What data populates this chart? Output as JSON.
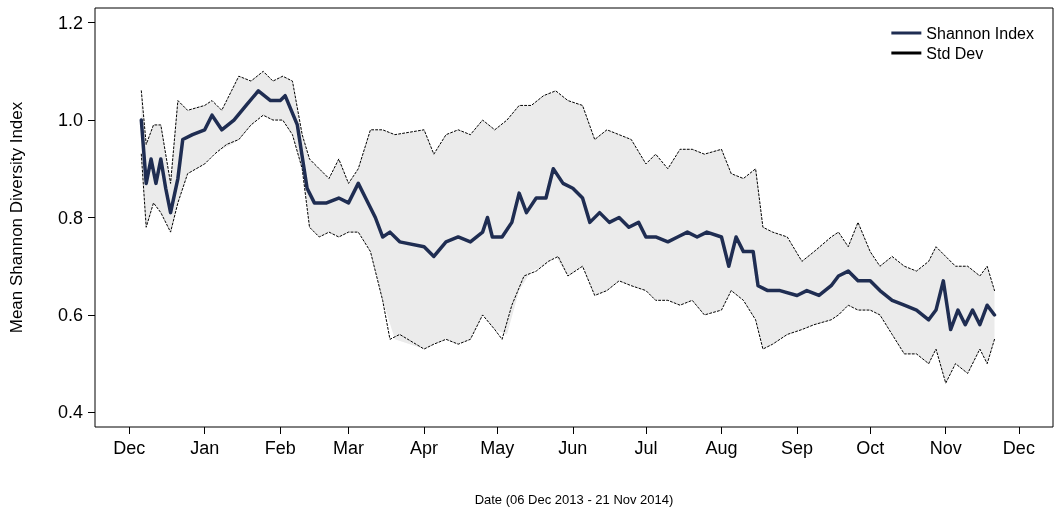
{
  "chart_data": {
    "type": "line",
    "xlabel": "Date (06 Dec 2013 - 21 Nov 2014)",
    "ylabel": "Mean Shannon Diversity Index",
    "xlim": [
      "2013-11-17",
      "2014-12-15"
    ],
    "xticks": [
      {
        "value": "2013-12-01",
        "label": "Dec"
      },
      {
        "value": "2014-01-01",
        "label": "Jan"
      },
      {
        "value": "2014-02-01",
        "label": "Feb"
      },
      {
        "value": "2014-03-01",
        "label": "Mar"
      },
      {
        "value": "2014-04-01",
        "label": "Apr"
      },
      {
        "value": "2014-05-01",
        "label": "May"
      },
      {
        "value": "2014-06-01",
        "label": "Jun"
      },
      {
        "value": "2014-07-01",
        "label": "Jul"
      },
      {
        "value": "2014-08-01",
        "label": "Aug"
      },
      {
        "value": "2014-09-01",
        "label": "Sep"
      },
      {
        "value": "2014-10-01",
        "label": "Oct"
      },
      {
        "value": "2014-11-01",
        "label": "Nov"
      },
      {
        "value": "2014-12-01",
        "label": "Dec"
      }
    ],
    "ylim": [
      0.37,
      1.23
    ],
    "yticks": [
      0.4,
      0.6,
      0.8,
      {
        "value": 1.0,
        "label": "1.0"
      },
      1.2
    ],
    "grid": false,
    "legend": "top right",
    "marker": "none",
    "series": [
      {
        "name": "Shannon Index",
        "color": "#1f2d52",
        "line_style": "solid",
        "x": [
          "2013-12-06",
          "2013-12-08",
          "2013-12-10",
          "2013-12-12",
          "2013-12-14",
          "2013-12-16",
          "2013-12-18",
          "2013-12-21",
          "2013-12-23",
          "2013-12-27",
          "2014-01-01",
          "2014-01-04",
          "2014-01-08",
          "2014-01-13",
          "2014-01-18",
          "2014-01-23",
          "2014-01-28",
          "2014-02-01",
          "2014-02-03",
          "2014-02-08",
          "2014-02-12",
          "2014-02-15",
          "2014-02-20",
          "2014-02-25",
          "2014-03-01",
          "2014-03-05",
          "2014-03-08",
          "2014-03-12",
          "2014-03-15",
          "2014-03-18",
          "2014-03-22",
          "2014-04-01",
          "2014-04-05",
          "2014-04-10",
          "2014-04-15",
          "2014-04-20",
          "2014-04-25",
          "2014-04-27",
          "2014-04-29",
          "2014-05-03",
          "2014-05-07",
          "2014-05-10",
          "2014-05-13",
          "2014-05-17",
          "2014-05-21",
          "2014-05-24",
          "2014-05-28",
          "2014-06-01",
          "2014-06-05",
          "2014-06-08",
          "2014-06-12",
          "2014-06-16",
          "2014-06-20",
          "2014-06-24",
          "2014-06-28",
          "2014-07-01",
          "2014-07-05",
          "2014-07-10",
          "2014-07-14",
          "2014-07-18",
          "2014-07-22",
          "2014-07-26",
          "2014-08-01",
          "2014-08-04",
          "2014-08-07",
          "2014-08-10",
          "2014-08-14",
          "2014-08-16",
          "2014-08-20",
          "2014-08-25",
          "2014-09-01",
          "2014-09-05",
          "2014-09-10",
          "2014-09-15",
          "2014-09-18",
          "2014-09-22",
          "2014-09-26",
          "2014-10-01",
          "2014-10-05",
          "2014-10-10",
          "2014-10-15",
          "2014-10-20",
          "2014-10-25",
          "2014-10-28",
          "2014-10-31",
          "2014-11-03",
          "2014-11-06",
          "2014-11-09",
          "2014-11-12",
          "2014-11-15",
          "2014-11-18",
          "2014-11-21"
        ],
        "values": [
          1.0,
          0.87,
          0.92,
          0.87,
          0.92,
          0.86,
          0.81,
          0.88,
          0.96,
          0.97,
          0.98,
          1.01,
          0.98,
          1.0,
          1.03,
          1.06,
          1.04,
          1.04,
          1.05,
          0.99,
          0.86,
          0.83,
          0.83,
          0.84,
          0.83,
          0.87,
          0.84,
          0.8,
          0.76,
          0.77,
          0.75,
          0.74,
          0.72,
          0.75,
          0.76,
          0.75,
          0.77,
          0.8,
          0.76,
          0.76,
          0.79,
          0.85,
          0.81,
          0.84,
          0.84,
          0.9,
          0.87,
          0.86,
          0.84,
          0.79,
          0.81,
          0.79,
          0.8,
          0.78,
          0.79,
          0.76,
          0.76,
          0.75,
          0.76,
          0.77,
          0.76,
          0.77,
          0.76,
          0.7,
          0.76,
          0.73,
          0.73,
          0.66,
          0.65,
          0.65,
          0.64,
          0.65,
          0.64,
          0.66,
          0.68,
          0.69,
          0.67,
          0.67,
          0.65,
          0.63,
          0.62,
          0.61,
          0.59,
          0.61,
          0.67,
          0.57,
          0.61,
          0.58,
          0.61,
          0.58,
          0.62,
          0.6
        ]
      },
      {
        "name": "Std Dev",
        "color": "#000000",
        "line_style": "dotted",
        "x": [
          "2013-12-06",
          "2013-12-08",
          "2013-12-11",
          "2013-12-14",
          "2013-12-18",
          "2013-12-21",
          "2013-12-25",
          "2014-01-01",
          "2014-01-04",
          "2014-01-08",
          "2014-01-12",
          "2014-01-15",
          "2014-01-20",
          "2014-01-25",
          "2014-01-29",
          "2014-02-02",
          "2014-02-06",
          "2014-02-10",
          "2014-02-13",
          "2014-02-17",
          "2014-02-21",
          "2014-02-25",
          "2014-03-01",
          "2014-03-05",
          "2014-03-10",
          "2014-03-15",
          "2014-03-20",
          "2014-04-01",
          "2014-04-05",
          "2014-04-10",
          "2014-04-15",
          "2014-04-20",
          "2014-04-25",
          "2014-04-30",
          "2014-05-05",
          "2014-05-10",
          "2014-05-15",
          "2014-05-20",
          "2014-05-25",
          "2014-05-30",
          "2014-06-05",
          "2014-06-10",
          "2014-06-15",
          "2014-06-20",
          "2014-06-25",
          "2014-07-01",
          "2014-07-05",
          "2014-07-10",
          "2014-07-15",
          "2014-07-20",
          "2014-07-25",
          "2014-08-01",
          "2014-08-05",
          "2014-08-10",
          "2014-08-15",
          "2014-08-18",
          "2014-08-22",
          "2014-08-28",
          "2014-09-03",
          "2014-09-08",
          "2014-09-15",
          "2014-09-18",
          "2014-09-22",
          "2014-09-26",
          "2014-10-01",
          "2014-10-05",
          "2014-10-10",
          "2014-10-15",
          "2014-10-20",
          "2014-10-25",
          "2014-10-28",
          "2014-11-01",
          "2014-11-05",
          "2014-11-10",
          "2014-11-15",
          "2014-11-18",
          "2014-11-21"
        ],
        "values": [
          1.06,
          0.95,
          0.99,
          0.99,
          0.87,
          1.04,
          1.02,
          1.03,
          1.04,
          1.02,
          1.06,
          1.09,
          1.08,
          1.1,
          1.08,
          1.09,
          1.08,
          0.97,
          0.92,
          0.9,
          0.88,
          0.92,
          0.87,
          0.9,
          0.98,
          0.98,
          0.97,
          0.98,
          0.93,
          0.97,
          0.98,
          0.97,
          1.0,
          0.98,
          1.0,
          1.03,
          1.03,
          1.05,
          1.06,
          1.04,
          1.03,
          0.96,
          0.98,
          0.97,
          0.96,
          0.91,
          0.93,
          0.9,
          0.94,
          0.94,
          0.93,
          0.94,
          0.89,
          0.88,
          0.9,
          0.78,
          0.77,
          0.76,
          0.71,
          0.73,
          0.76,
          0.77,
          0.74,
          0.79,
          0.73,
          0.7,
          0.72,
          0.7,
          0.69,
          0.71,
          0.74,
          0.72,
          0.7,
          0.7,
          0.68,
          0.7,
          0.65
        ],
        "upper": [
          1.06,
          0.95,
          0.99,
          0.99,
          0.87,
          1.04,
          1.02,
          1.03,
          1.04,
          1.02,
          1.06,
          1.09,
          1.08,
          1.1,
          1.08,
          1.09,
          1.08,
          0.97,
          0.92,
          0.9,
          0.88,
          0.92,
          0.87,
          0.9,
          0.98,
          0.98,
          0.97,
          0.98,
          0.93,
          0.97,
          0.98,
          0.97,
          1.0,
          0.98,
          1.0,
          1.03,
          1.03,
          1.05,
          1.06,
          1.04,
          1.03,
          0.96,
          0.98,
          0.97,
          0.96,
          0.91,
          0.93,
          0.9,
          0.94,
          0.94,
          0.93,
          0.94,
          0.89,
          0.88,
          0.9,
          0.78,
          0.77,
          0.76,
          0.71,
          0.73,
          0.76,
          0.77,
          0.74,
          0.79,
          0.73,
          0.7,
          0.72,
          0.7,
          0.69,
          0.71,
          0.74,
          0.72,
          0.7,
          0.7,
          0.68,
          0.7,
          0.65
        ],
        "lower": [
          0.93,
          0.78,
          0.83,
          0.81,
          0.77,
          0.83,
          0.89,
          0.91,
          0.93,
          0.94,
          0.95,
          0.96,
          0.99,
          1.01,
          1.0,
          1.0,
          0.97,
          0.9,
          0.78,
          0.76,
          0.77,
          0.76,
          0.77,
          0.77,
          0.73,
          0.63,
          0.55,
          0.53,
          0.54,
          0.55,
          0.54,
          0.55,
          0.6,
          0.57,
          0.56,
          0.65,
          0.69,
          0.7,
          0.72,
          0.68,
          0.7,
          0.64,
          0.65,
          0.67,
          0.66,
          0.65,
          0.63,
          0.63,
          0.62,
          0.63,
          0.6,
          0.61,
          0.65,
          0.63,
          0.59,
          0.53,
          0.54,
          0.56,
          0.57,
          0.58,
          0.59,
          0.6,
          0.62,
          0.61,
          0.61,
          0.6,
          0.56,
          0.52,
          0.52,
          0.5,
          0.53,
          0.46,
          0.5,
          0.48,
          0.53,
          0.5,
          0.55
        ]
      },
      {
        "color": "#000000",
        "line_style": "dotted",
        "x": [
          "2013-12-06",
          "2013-12-08",
          "2013-12-11",
          "2013-12-14",
          "2013-12-18",
          "2013-12-21",
          "2013-12-25",
          "2014-01-01",
          "2014-01-05",
          "2014-01-10",
          "2014-01-15",
          "2014-01-20",
          "2014-01-25",
          "2014-01-29",
          "2014-02-02",
          "2014-02-06",
          "2014-02-10",
          "2014-02-13",
          "2014-02-17",
          "2014-02-21",
          "2014-02-25",
          "2014-03-01",
          "2014-03-05",
          "2014-03-10",
          "2014-03-15",
          "2014-03-18",
          "2014-03-22",
          "2014-04-01",
          "2014-04-05",
          "2014-04-10",
          "2014-04-15",
          "2014-04-20",
          "2014-04-25",
          "2014-04-30",
          "2014-05-03",
          "2014-05-07",
          "2014-05-12",
          "2014-05-17",
          "2014-05-22",
          "2014-05-26",
          "2014-05-30",
          "2014-06-05",
          "2014-06-10",
          "2014-06-15",
          "2014-06-20",
          "2014-06-25",
          "2014-07-01",
          "2014-07-05",
          "2014-07-10",
          "2014-07-15",
          "2014-07-20",
          "2014-07-25",
          "2014-08-01",
          "2014-08-05",
          "2014-08-10",
          "2014-08-15",
          "2014-08-18",
          "2014-08-22",
          "2014-08-28",
          "2014-09-03",
          "2014-09-08",
          "2014-09-15",
          "2014-09-18",
          "2014-09-22",
          "2014-09-26",
          "2014-10-01",
          "2014-10-05",
          "2014-10-10",
          "2014-10-15",
          "2014-10-20",
          "2014-10-25",
          "2014-10-28",
          "2014-11-01",
          "2014-11-05",
          "2014-11-10",
          "2014-11-15",
          "2014-11-18",
          "2014-11-21"
        ],
        "values": [
          0.93,
          0.78,
          0.83,
          0.81,
          0.77,
          0.83,
          0.89,
          0.91,
          0.93,
          0.95,
          0.96,
          0.99,
          1.01,
          1.0,
          1.0,
          0.97,
          0.9,
          0.78,
          0.76,
          0.77,
          0.76,
          0.77,
          0.77,
          0.73,
          0.63,
          0.55,
          0.56,
          0.53,
          0.54,
          0.55,
          0.54,
          0.55,
          0.6,
          0.57,
          0.55,
          0.62,
          0.68,
          0.69,
          0.71,
          0.72,
          0.68,
          0.7,
          0.64,
          0.65,
          0.67,
          0.66,
          0.65,
          0.63,
          0.63,
          0.62,
          0.63,
          0.6,
          0.61,
          0.65,
          0.63,
          0.59,
          0.53,
          0.54,
          0.56,
          0.57,
          0.58,
          0.59,
          0.6,
          0.62,
          0.61,
          0.61,
          0.6,
          0.56,
          0.52,
          0.52,
          0.5,
          0.53,
          0.46,
          0.5,
          0.48,
          0.53,
          0.5,
          0.55
        ]
      }
    ]
  }
}
